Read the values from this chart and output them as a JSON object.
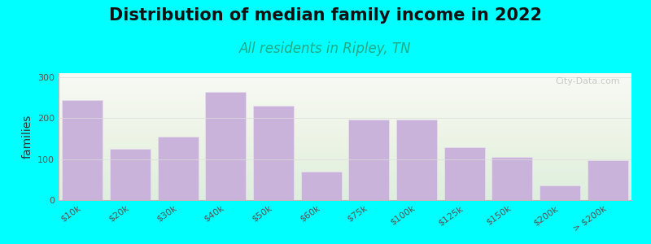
{
  "title": "Distribution of median family income in 2022",
  "subtitle": "All residents in Ripley, TN",
  "ylabel": "families",
  "categories": [
    "$10k",
    "$20k",
    "$30k",
    "$40k",
    "$50k",
    "$60k",
    "$75k",
    "$100k",
    "$125k",
    "$150k",
    "$200k",
    "> $200k"
  ],
  "values": [
    245,
    125,
    155,
    265,
    230,
    70,
    197,
    197,
    130,
    105,
    35,
    97
  ],
  "bar_color": "#c9b3db",
  "bar_edge_color": "#e8e0f0",
  "background_color": "#00ffff",
  "title_fontsize": 15,
  "subtitle_fontsize": 12,
  "subtitle_color": "#22aa88",
  "ylabel_fontsize": 10,
  "tick_fontsize": 8,
  "ylim": [
    0,
    310
  ],
  "yticks": [
    0,
    100,
    200,
    300
  ],
  "watermark": "City-Data.com"
}
